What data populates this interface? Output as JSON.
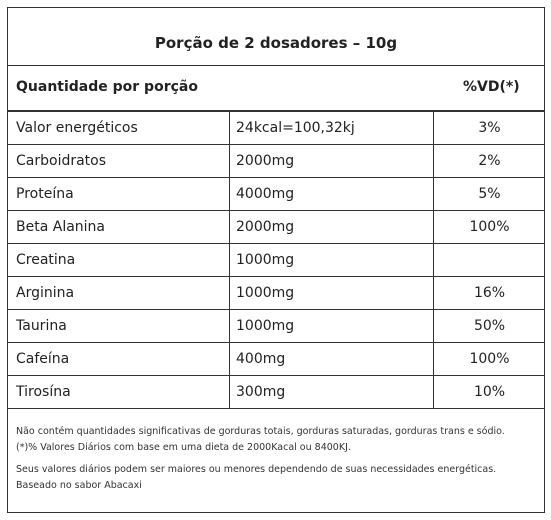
{
  "title": "Porção de 2 dosadores – 10g",
  "header": [
    "Quantidade por porção",
    "%VD(*)"
  ],
  "rows": [
    [
      "Valor energéticos",
      "24kcal=100,32kj",
      "3%"
    ],
    [
      "Carboidratos",
      "2000mg",
      "2%"
    ],
    [
      "Proteína",
      "4000mg",
      "5%"
    ],
    [
      "Beta Alanina",
      "2000mg",
      "100%"
    ],
    [
      "Creatina",
      "1000mg",
      null
    ],
    [
      "Arginina",
      "1000mg",
      "16%"
    ],
    [
      "Taurina",
      "1000mg",
      "50%"
    ],
    [
      "Cafeína",
      "400mg",
      "100%"
    ],
    [
      "Tirosína",
      "300mg",
      "10%"
    ]
  ],
  "notes": [
    "Não contém quantidades significativas de gorduras totais, gorduras saturadas, gorduras trans e sódio.",
    "(*)% Valores Diários com base em uma dieta de 2000Kacal ou 8400KJ.",
    "Seus valores diários podem ser maiores ou menores dependendo de suas necessidades energéticas.",
    "Baseado no sabor Abacaxi"
  ]
}
